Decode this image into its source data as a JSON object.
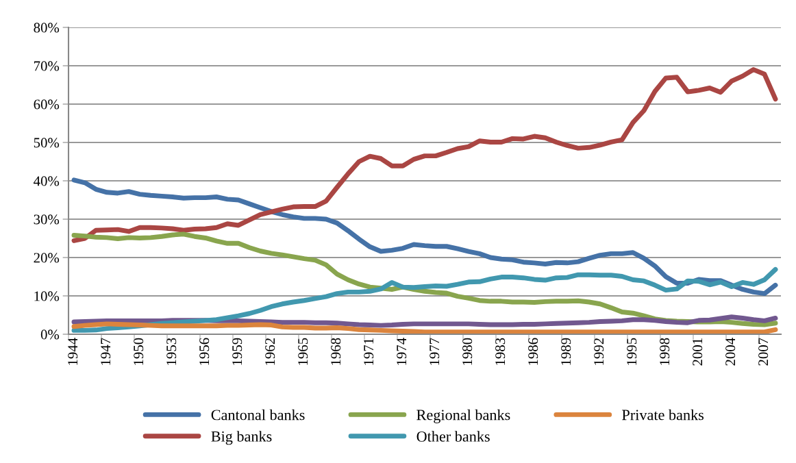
{
  "chart_data": {
    "type": "line",
    "categories": [
      "1944",
      null,
      null,
      "1947",
      null,
      null,
      "1950",
      null,
      null,
      "1953",
      null,
      null,
      "1956",
      null,
      null,
      "1959",
      null,
      null,
      "1962",
      null,
      null,
      "1965",
      null,
      null,
      "1968",
      null,
      null,
      "1971",
      null,
      null,
      "1974",
      null,
      null,
      "1977",
      null,
      null,
      "1980",
      null,
      null,
      "1983",
      null,
      null,
      "1986",
      null,
      null,
      "1989",
      null,
      null,
      "1992",
      null,
      null,
      "1995",
      null,
      null,
      "1998",
      null,
      null,
      "2001",
      null,
      null,
      "2004",
      null,
      null,
      "2007",
      null
    ],
    "series": [
      {
        "name": "Cantonal banks",
        "color": "#4572a7",
        "values": [
          40.2,
          39.5,
          37.8,
          37.0,
          36.8,
          37.2,
          36.5,
          36.2,
          36.0,
          35.8,
          35.5,
          35.6,
          35.6,
          35.8,
          35.2,
          35.0,
          34.0,
          33.0,
          32.0,
          31.2,
          30.6,
          30.2,
          30.2,
          30.0,
          29.0,
          27.0,
          24.8,
          22.8,
          21.6,
          21.9,
          22.4,
          23.4,
          23.1,
          22.9,
          22.9,
          22.3,
          21.6,
          21.0,
          20.0,
          19.6,
          19.4,
          18.8,
          18.6,
          18.3,
          18.7,
          18.6,
          18.9,
          19.8,
          20.6,
          21.0,
          21.0,
          21.3,
          19.8,
          17.8,
          15.0,
          13.3,
          13.3,
          14.3,
          14.0,
          14.0,
          12.8,
          11.7,
          11.0,
          10.6,
          12.8
        ]
      },
      {
        "name": "Big banks",
        "color": "#aa4643",
        "values": [
          24.4,
          25.0,
          27.1,
          27.2,
          27.3,
          26.8,
          27.8,
          27.8,
          27.7,
          27.5,
          27.1,
          27.4,
          27.5,
          27.8,
          28.8,
          28.4,
          29.8,
          31.2,
          31.9,
          32.6,
          33.2,
          33.3,
          33.3,
          34.7,
          38.3,
          41.8,
          45.0,
          46.4,
          45.8,
          43.9,
          43.9,
          45.6,
          46.5,
          46.5,
          47.4,
          48.4,
          48.9,
          50.4,
          50.1,
          50.1,
          51.0,
          50.9,
          51.6,
          51.2,
          50.1,
          49.2,
          48.5,
          48.7,
          49.3,
          50.1,
          50.7,
          55.2,
          58.3,
          63.3,
          66.8,
          67.0,
          63.2,
          63.6,
          64.2,
          63.1,
          66.0,
          67.3,
          69.0,
          67.8,
          61.3
        ]
      },
      {
        "name": "Regional banks",
        "color": "#89a54e",
        "values": [
          25.8,
          25.6,
          25.3,
          25.2,
          24.9,
          25.2,
          25.1,
          25.2,
          25.5,
          25.9,
          26.1,
          25.5,
          25.1,
          24.3,
          23.7,
          23.7,
          22.6,
          21.7,
          21.1,
          20.7,
          20.2,
          19.7,
          19.3,
          18.1,
          15.7,
          14.2,
          13.1,
          12.3,
          12.0,
          11.7,
          12.3,
          11.7,
          11.2,
          10.9,
          10.7,
          9.9,
          9.4,
          8.8,
          8.6,
          8.6,
          8.4,
          8.4,
          8.3,
          8.5,
          8.6,
          8.6,
          8.7,
          8.4,
          7.9,
          6.9,
          5.8,
          5.5,
          4.8,
          4.0,
          3.6,
          3.4,
          3.3,
          3.2,
          3.2,
          3.3,
          3.1,
          2.8,
          2.6,
          2.5,
          2.9
        ]
      },
      {
        "color": "#71588f",
        "values": [
          3.2,
          3.3,
          3.4,
          3.5,
          3.5,
          3.5,
          3.5,
          3.5,
          3.5,
          3.6,
          3.6,
          3.6,
          3.6,
          3.5,
          3.5,
          3.5,
          3.4,
          3.3,
          3.2,
          3.1,
          3.1,
          3.1,
          3.0,
          3.0,
          2.9,
          2.7,
          2.5,
          2.4,
          2.3,
          2.4,
          2.6,
          2.7,
          2.7,
          2.7,
          2.7,
          2.7,
          2.7,
          2.6,
          2.5,
          2.5,
          2.5,
          2.6,
          2.6,
          2.7,
          2.8,
          2.9,
          3.0,
          3.1,
          3.3,
          3.4,
          3.5,
          3.8,
          3.8,
          3.6,
          3.3,
          3.1,
          3.0,
          3.6,
          3.7,
          4.1,
          4.5,
          4.2,
          3.8,
          3.5,
          4.2
        ]
      },
      {
        "name": "Other banks",
        "color": "#4198af",
        "values": [
          1.0,
          1.0,
          1.1,
          1.5,
          1.7,
          1.9,
          2.2,
          2.5,
          2.8,
          3.0,
          3.2,
          3.4,
          3.6,
          3.8,
          4.3,
          4.8,
          5.4,
          6.2,
          7.2,
          7.9,
          8.4,
          8.8,
          9.3,
          9.8,
          10.6,
          11.0,
          11.0,
          11.2,
          11.8,
          13.5,
          12.3,
          12.2,
          12.4,
          12.6,
          12.5,
          13.0,
          13.6,
          13.7,
          14.4,
          14.9,
          14.9,
          14.7,
          14.3,
          14.1,
          14.7,
          14.8,
          15.5,
          15.5,
          15.4,
          15.4,
          15.1,
          14.2,
          13.9,
          12.8,
          11.5,
          11.8,
          13.9,
          13.8,
          12.9,
          13.6,
          12.4,
          13.5,
          13.0,
          14.2,
          16.9
        ]
      },
      {
        "name": "Private banks",
        "color": "#db843d",
        "values": [
          2.0,
          2.3,
          2.5,
          2.7,
          2.6,
          2.5,
          2.4,
          2.3,
          2.2,
          2.2,
          2.2,
          2.2,
          2.2,
          2.2,
          2.3,
          2.3,
          2.4,
          2.5,
          2.4,
          1.9,
          1.8,
          1.8,
          1.6,
          1.6,
          1.7,
          1.5,
          1.2,
          1.1,
          1.0,
          0.9,
          0.8,
          0.7,
          0.6,
          0.6,
          0.6,
          0.6,
          0.6,
          0.6,
          0.6,
          0.6,
          0.6,
          0.6,
          0.6,
          0.6,
          0.6,
          0.6,
          0.6,
          0.6,
          0.6,
          0.6,
          0.6,
          0.6,
          0.6,
          0.6,
          0.6,
          0.6,
          0.6,
          0.6,
          0.6,
          0.6,
          0.6,
          0.6,
          0.6,
          0.6,
          1.2
        ]
      }
    ],
    "ylim": [
      0,
      80
    ],
    "yticks": [
      {
        "value": 0,
        "label": "0%"
      },
      {
        "value": 10,
        "label": "10%"
      },
      {
        "value": 20,
        "label": "20%"
      },
      {
        "value": 30,
        "label": "30%"
      },
      {
        "value": 40,
        "label": "40%"
      },
      {
        "value": 50,
        "label": "50%"
      },
      {
        "value": 60,
        "label": "60%"
      },
      {
        "value": 70,
        "label": "70%"
      },
      {
        "value": 80,
        "label": "80%"
      }
    ],
    "grid": "y",
    "legend": "bottom",
    "marker": "none",
    "line_style": "solid"
  }
}
